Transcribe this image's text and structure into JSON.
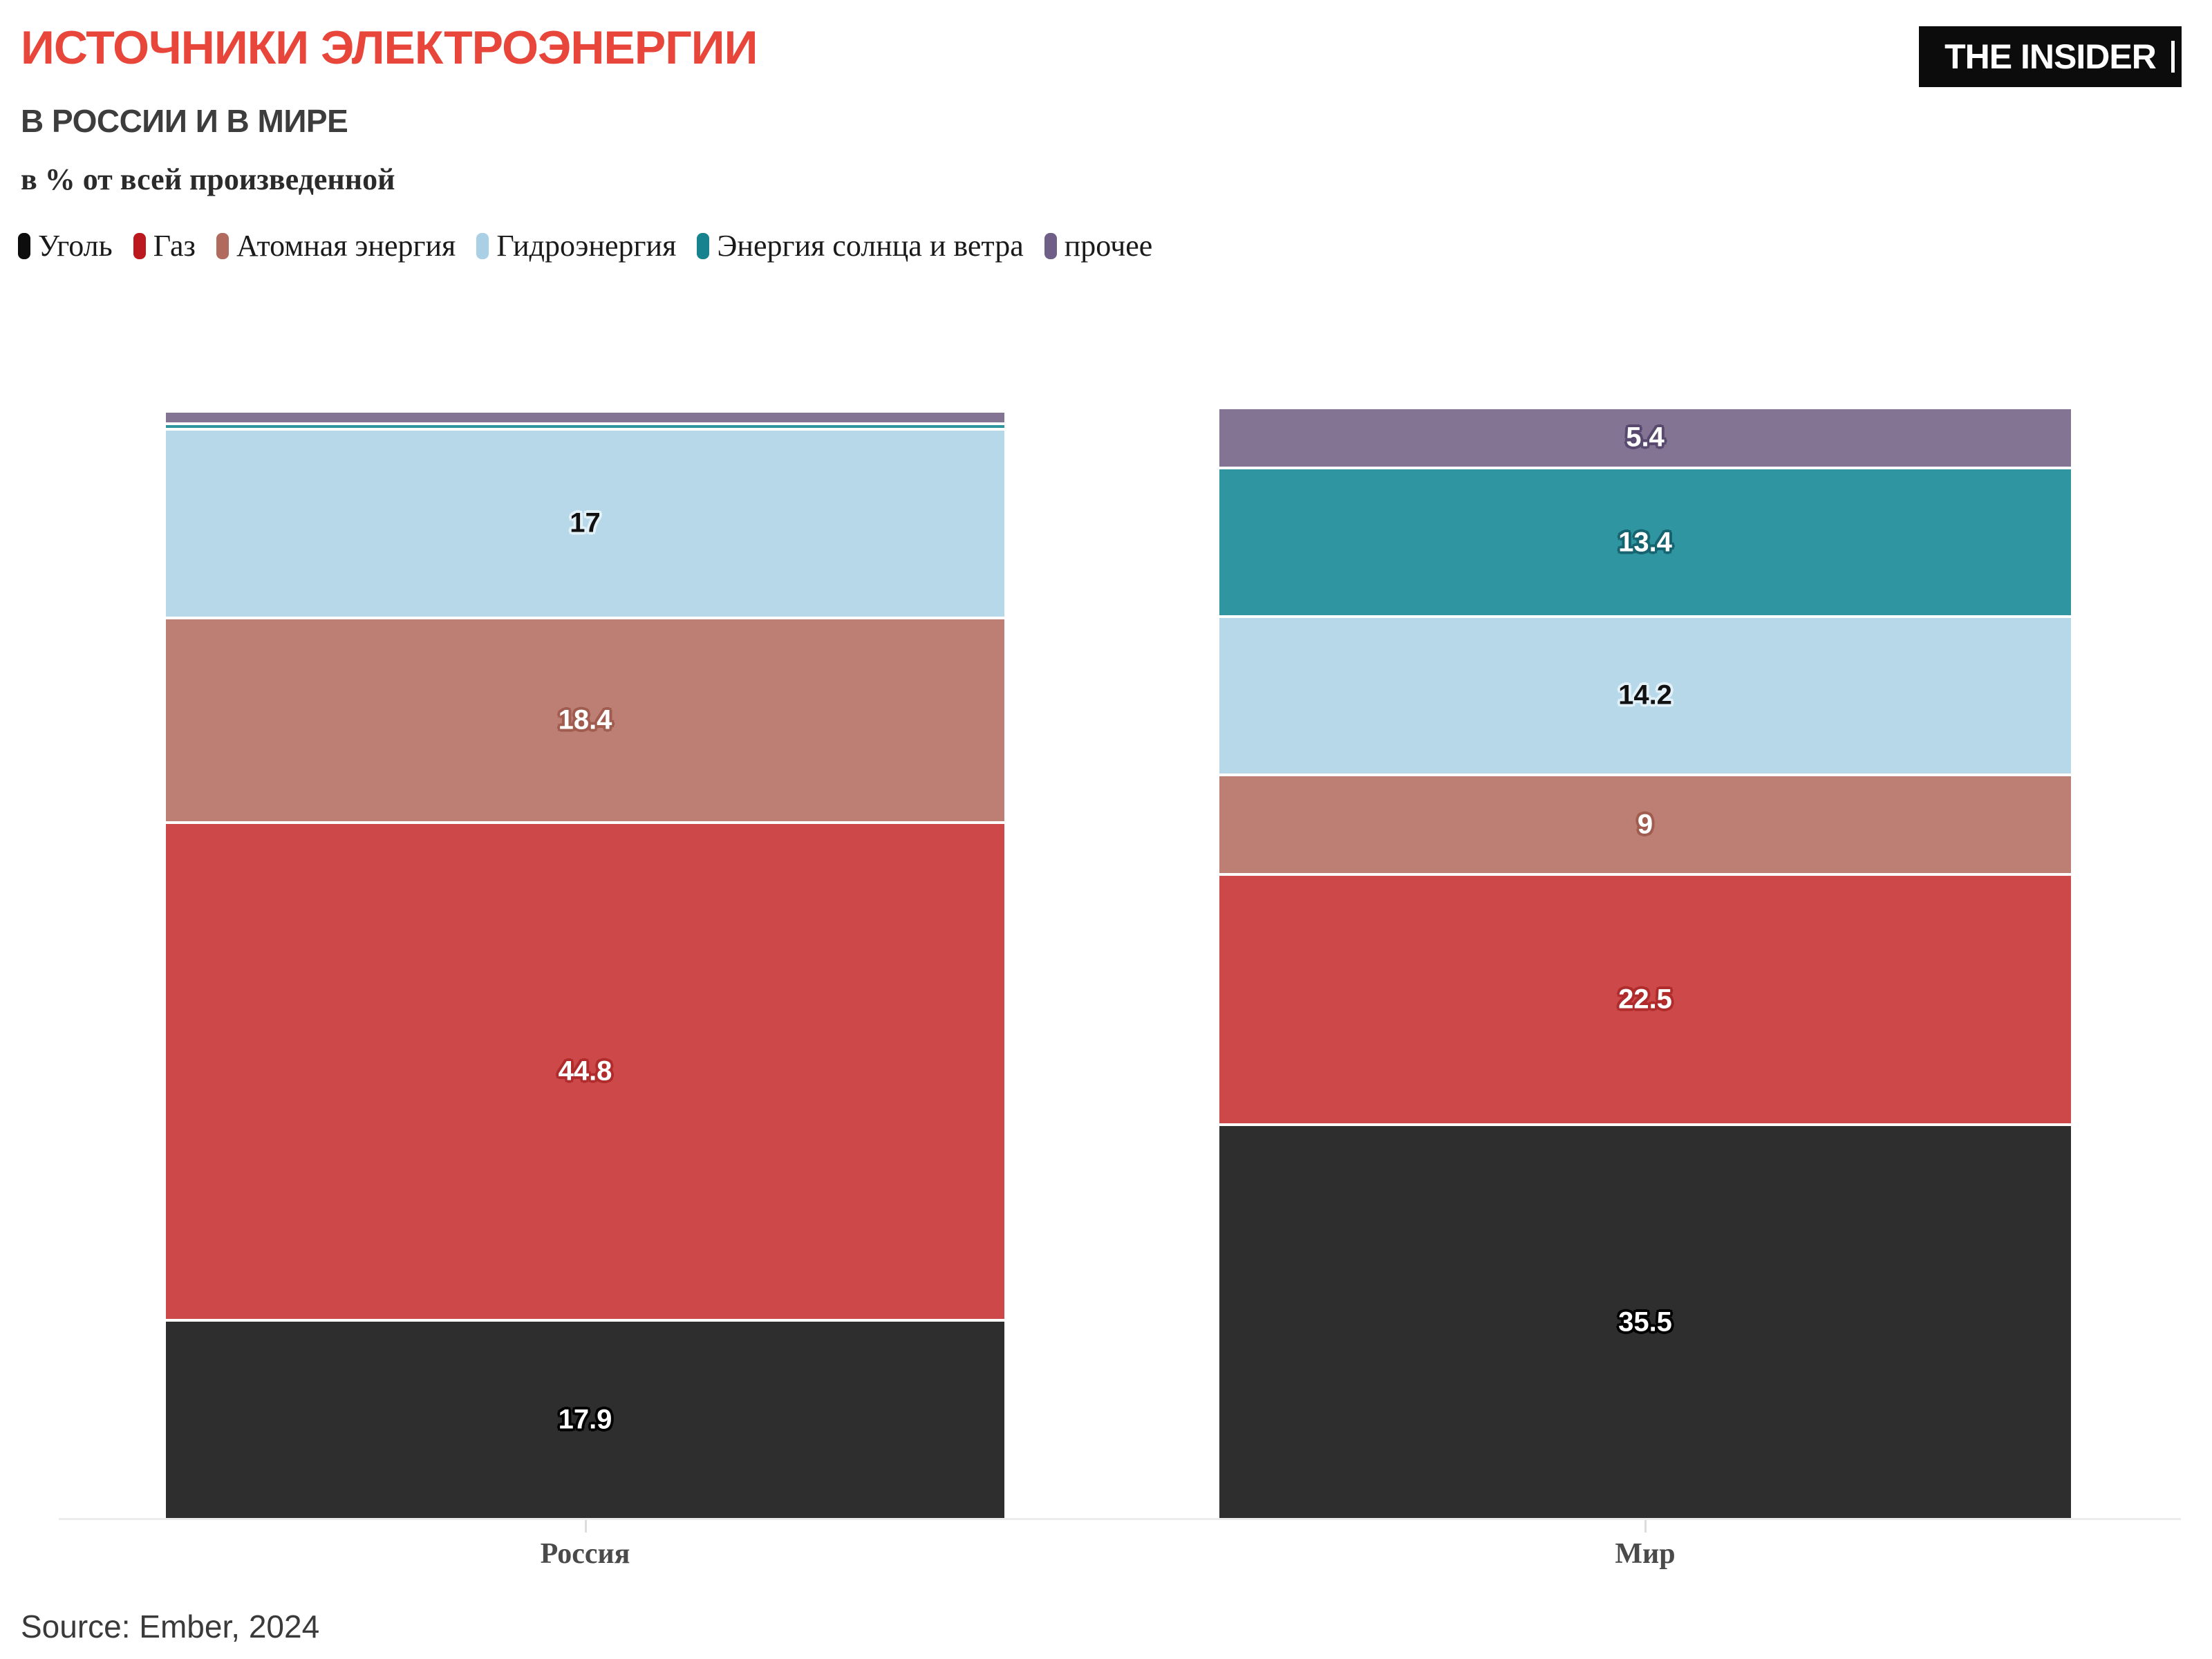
{
  "header": {
    "title": "ИСТОЧНИКИ ЭЛЕКТРОЭНЕРГИИ",
    "title_color": "#e8463a",
    "subtitle": "В РОССИИ И В МИРЕ",
    "subtitle_color": "#3d3d3d",
    "unit_note": "в % от всей произведенной",
    "unit_note_color": "#2b2b2b",
    "logo_text": "THE INSIDER"
  },
  "legend": [
    {
      "label": "Уголь",
      "swatch_color": "#0d0d0d"
    },
    {
      "label": "Газ",
      "swatch_color": "#bc191e"
    },
    {
      "label": "Атомная энергия",
      "swatch_color": "#b06a5e"
    },
    {
      "label": "Гидроэнергия",
      "swatch_color": "#a9d0e5"
    },
    {
      "label": "Энергия солнца и ветра",
      "swatch_color": "#17838f"
    },
    {
      "label": "прочее",
      "swatch_color": "#6f5f86"
    }
  ],
  "chart_data": {
    "type": "bar",
    "stacked": true,
    "unit": "%",
    "title": "Источники электроэнергии в России и в мире, в % от всей произведенной",
    "categories": [
      "Россия",
      "Мир"
    ],
    "ylim": [
      0,
      100
    ],
    "grid": false,
    "legend_position": "top",
    "series": [
      {
        "name": "Уголь",
        "bar_color": "#2e2e2e",
        "label_color": "#ffffff",
        "halo_color": "#000000",
        "values": [
          17.9,
          35.5
        ],
        "labels": [
          "17.9",
          "35.5"
        ]
      },
      {
        "name": "Газ",
        "bar_color": "#cd4949",
        "label_color": "#ffffff",
        "halo_color": "#b02c2c",
        "values": [
          44.8,
          22.5
        ],
        "labels": [
          "44.8",
          "22.5"
        ]
      },
      {
        "name": "Атомная энергия",
        "bar_color": "#bd7e73",
        "label_color": "#ffffff",
        "halo_color": "#a05c4e",
        "values": [
          18.4,
          9
        ],
        "labels": [
          "18.4",
          "9"
        ]
      },
      {
        "name": "Гидроэнергия",
        "bar_color": "#b6d8e8",
        "label_color": "#111111",
        "halo_color": "#e2f0f7",
        "values": [
          17,
          14.2
        ],
        "labels": [
          "17",
          "14.2"
        ]
      },
      {
        "name": "Энергия солнца и ветра",
        "bar_color": "#2e95a1",
        "label_color": "#ffffff",
        "halo_color": "#166470",
        "values": [
          0.5,
          13.4
        ],
        "labels": [
          "",
          "13.4"
        ]
      },
      {
        "name": "прочее",
        "bar_color": "#837494",
        "label_color": "#ffffff",
        "halo_color": "#584a6e",
        "values": [
          1.1,
          5.4
        ],
        "labels": [
          "",
          "5.4"
        ]
      }
    ]
  },
  "source": "Source: Ember, 2024"
}
